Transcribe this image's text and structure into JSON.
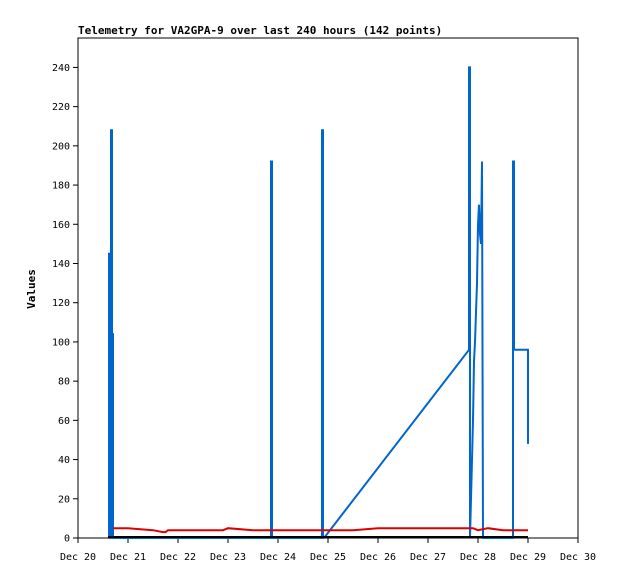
{
  "chart_data": {
    "type": "line",
    "title": "Telemetry for VA2GPA-9 over last 240 hours (142 points)",
    "ylabel": "Values",
    "xlabel": "",
    "ylim": [
      0,
      255
    ],
    "y_ticks": [
      0,
      20,
      40,
      60,
      80,
      100,
      120,
      140,
      160,
      180,
      200,
      220,
      240
    ],
    "x_ticks": [
      "Dec 20",
      "Dec 21",
      "Dec 22",
      "Dec 23",
      "Dec 24",
      "Dec 25",
      "Dec 26",
      "Dec 27",
      "Dec 28",
      "Dec 29",
      "Dec 30"
    ],
    "grid": false,
    "series": [
      {
        "color": "#0066cc",
        "x": [
          20.62,
          20.62,
          20.64,
          20.64,
          20.66,
          20.66,
          20.68,
          20.68,
          20.7,
          20.7,
          23.86,
          23.86,
          23.88,
          23.88,
          24.88,
          24.88,
          24.9,
          24.9,
          24.92,
          27.82,
          27.82,
          27.84,
          27.84,
          27.86,
          27.88,
          27.9,
          27.92,
          27.94,
          27.96,
          27.98,
          28.0,
          28.02,
          28.04,
          28.06,
          28.08,
          28.08,
          28.1,
          28.1,
          28.7,
          28.7,
          28.72,
          28.72,
          28.96,
          28.96,
          29.0,
          29.0
        ],
        "y": [
          0,
          145,
          145,
          0,
          0,
          208,
          208,
          104,
          104,
          0,
          0,
          192,
          192,
          0,
          0,
          208,
          208,
          0,
          0,
          96,
          240,
          240,
          0,
          20,
          40,
          60,
          90,
          100,
          115,
          130,
          160,
          170,
          155,
          150,
          192,
          192,
          0,
          0,
          0,
          192,
          192,
          96,
          96,
          96,
          96,
          48
        ]
      },
      {
        "color": "#dd0000",
        "x": [
          20.7,
          21.0,
          21.5,
          21.7,
          21.75,
          21.8,
          22.0,
          22.5,
          22.9,
          23.0,
          23.5,
          24.0,
          24.5,
          25.0,
          25.5,
          26.0,
          26.5,
          27.0,
          27.5,
          27.9,
          28.0,
          28.2,
          28.5,
          28.9,
          29.0
        ],
        "y": [
          5,
          5,
          4,
          3,
          3,
          4,
          4,
          4,
          4,
          5,
          4,
          4,
          4,
          4,
          4,
          5,
          5,
          5,
          5,
          5,
          4,
          5,
          4,
          4,
          4
        ]
      },
      {
        "color": "#000000",
        "x": [
          20.6,
          29.0
        ],
        "y": [
          0.5,
          0.5
        ]
      }
    ]
  }
}
